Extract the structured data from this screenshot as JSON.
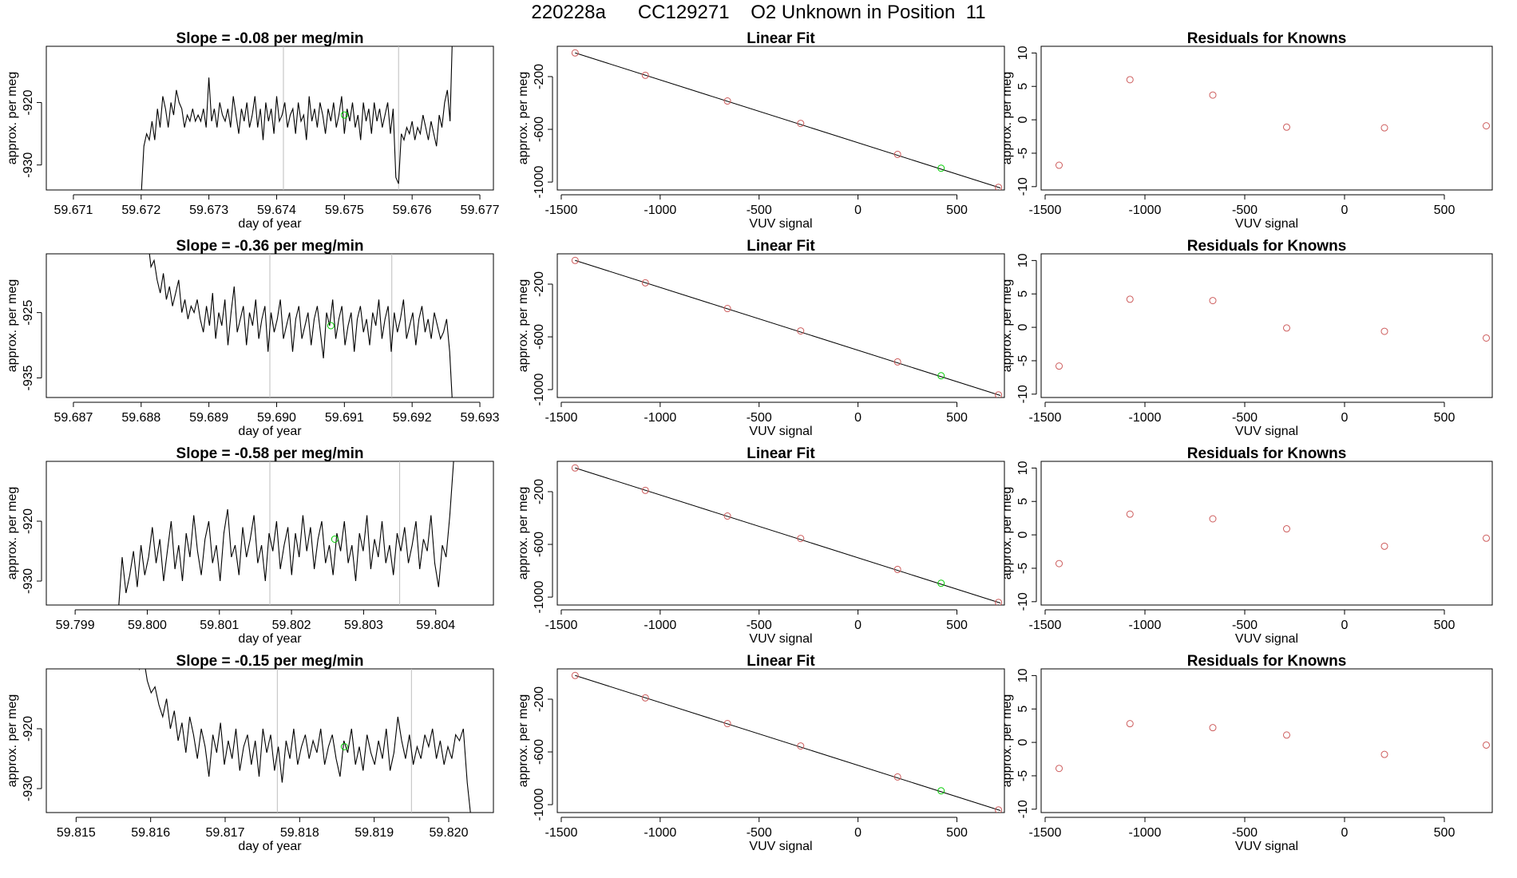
{
  "page_title": "220228a      CC129271    O2 Unknown in Position  11",
  "colors": {
    "trace": "#000000",
    "fit_line": "#000000",
    "known_points": "#cd5c5c",
    "unknown_point": "#00cc00",
    "window_lines": "#bebebe"
  },
  "chart_data": [
    {
      "type": "line",
      "title": "Slope =  -0.08  per meg/min",
      "xlabel": "day of year",
      "ylabel": "approx. per meg",
      "xlim": [
        59.6706,
        59.6772
      ],
      "ylim": [
        -934,
        -911
      ],
      "x_ticks": [
        59.671,
        59.672,
        59.673,
        59.674,
        59.675,
        59.676,
        59.677
      ],
      "x_tick_labels": [
        "59.671",
        "59.672",
        "59.673",
        "59.674",
        "59.675",
        "59.676",
        "59.677"
      ],
      "y_ticks": [
        -920,
        -930
      ],
      "y_tick_labels": [
        "-920",
        "-930"
      ],
      "vlines": [
        59.6741,
        59.6758
      ],
      "trace": {
        "x0": 59.672,
        "x1": 59.6766,
        "y": [
          -935,
          -927,
          -925,
          -926,
          -923,
          -926,
          -921,
          -924,
          -919,
          -921,
          -924,
          -920,
          -922,
          -918,
          -920,
          -921,
          -924,
          -922,
          -923,
          -921,
          -923,
          -922,
          -923,
          -921,
          -924,
          -916,
          -923,
          -921,
          -924,
          -920,
          -922,
          -923,
          -921,
          -924,
          -919,
          -922,
          -925,
          -921,
          -923,
          -920,
          -924,
          -922,
          -919,
          -924,
          -921,
          -926,
          -920,
          -923,
          -921,
          -925,
          -919,
          -923,
          -922,
          -920,
          -924,
          -922,
          -921,
          -925,
          -920,
          -923,
          -922,
          -926,
          -919,
          -923,
          -921,
          -924,
          -920,
          -922,
          -925,
          -921,
          -923,
          -920,
          -924,
          -922,
          -919,
          -925,
          -921,
          -923,
          -920,
          -924,
          -922,
          -926,
          -920,
          -923,
          -921,
          -925,
          -920,
          -923,
          -921,
          -924,
          -922,
          -920,
          -925,
          -921,
          -932,
          -933,
          -925,
          -926,
          -924,
          -925,
          -923,
          -926,
          -924,
          -925,
          -922,
          -924,
          -926,
          -923,
          -925,
          -927,
          -922,
          -924,
          -920,
          -918,
          -923,
          -907
        ]
      },
      "unknown_point": {
        "x": 59.675,
        "y": -922
      }
    },
    {
      "type": "scatter",
      "title": "Linear Fit",
      "xlabel": "VUV signal",
      "ylabel": "approx. per meg",
      "xlim": [
        -1520,
        740
      ],
      "ylim": [
        -1060,
        30
      ],
      "x_ticks": [
        -1500,
        -1000,
        -500,
        0,
        500
      ],
      "x_tick_labels": [
        "-1500",
        "-1000",
        "-500",
        "0",
        "500"
      ],
      "y_ticks": [
        -200,
        -600,
        -1000
      ],
      "y_tick_labels": [
        "-200",
        "-600",
        "-1000"
      ],
      "fit_line": {
        "x": [
          -1430,
          720
        ],
        "y": [
          -20,
          -1045
        ]
      },
      "known_points": {
        "x": [
          -1430,
          -1075,
          -660,
          -290,
          200,
          710
        ],
        "y": [
          -20,
          -190,
          -385,
          -555,
          -790,
          -1040
        ]
      },
      "unknown_point": {
        "x": 420,
        "y": -895
      }
    },
    {
      "type": "scatter",
      "title": "Residuals for Knowns",
      "xlabel": "VUV signal",
      "ylabel": "approx. per meg",
      "xlim": [
        -1520,
        740
      ],
      "ylim": [
        -10.5,
        11
      ],
      "x_ticks": [
        -1500,
        -1000,
        -500,
        0,
        500
      ],
      "x_tick_labels": [
        "-1500",
        "-1000",
        "-500",
        "0",
        "500"
      ],
      "y_ticks": [
        10,
        5,
        0,
        -5,
        -10
      ],
      "y_tick_labels": [
        "10",
        "5",
        "0",
        "-5",
        "-10"
      ],
      "known_points": {
        "x": [
          -1430,
          -1075,
          -660,
          -290,
          200,
          710
        ],
        "y": [
          -6.8,
          6.0,
          3.7,
          -1.1,
          -1.2,
          -0.9
        ]
      }
    },
    {
      "type": "line",
      "title": "Slope =  -0.36  per meg/min",
      "xlabel": "day of year",
      "ylabel": "approx. per meg",
      "xlim": [
        59.6866,
        59.6932
      ],
      "ylim": [
        -938,
        -916
      ],
      "x_ticks": [
        59.687,
        59.688,
        59.689,
        59.69,
        59.691,
        59.692,
        59.693
      ],
      "x_tick_labels": [
        "59.687",
        "59.688",
        "59.689",
        "59.690",
        "59.691",
        "59.692",
        "59.693"
      ],
      "y_ticks": [
        -925,
        -935
      ],
      "y_tick_labels": [
        "-925",
        "-935"
      ],
      "vlines": [
        59.6899,
        59.6917
      ],
      "trace": {
        "x0": 59.6881,
        "x1": 59.6926,
        "y": [
          -914,
          -918,
          -917,
          -920,
          -922,
          -919,
          -923,
          -921,
          -924,
          -922,
          -920,
          -925,
          -923,
          -926,
          -924,
          -925,
          -923,
          -926,
          -928,
          -924,
          -927,
          -922,
          -929,
          -925,
          -927,
          -923,
          -930,
          -925,
          -921,
          -928,
          -926,
          -924,
          -930,
          -925,
          -927,
          -923,
          -929,
          -926,
          -924,
          -931,
          -925,
          -928,
          -926,
          -923,
          -929,
          -927,
          -925,
          -931,
          -926,
          -924,
          -929,
          -927,
          -925,
          -930,
          -926,
          -924,
          -928,
          -932,
          -925,
          -927,
          -923,
          -929,
          -926,
          -924,
          -930,
          -927,
          -925,
          -931,
          -926,
          -924,
          -928,
          -926,
          -930,
          -925,
          -927,
          -923,
          -929,
          -926,
          -924,
          -931,
          -925,
          -928,
          -926,
          -923,
          -929,
          -927,
          -925,
          -930,
          -926,
          -924,
          -928,
          -926,
          -929,
          -925,
          -927,
          -929,
          -928,
          -926,
          -931,
          -940
        ]
      },
      "unknown_point": {
        "x": 59.6908,
        "y": -927
      }
    },
    {
      "type": "scatter",
      "title": "Linear Fit",
      "xlabel": "VUV signal",
      "ylabel": "approx. per meg",
      "xlim": [
        -1520,
        740
      ],
      "ylim": [
        -1060,
        30
      ],
      "x_ticks": [
        -1500,
        -1000,
        -500,
        0,
        500
      ],
      "x_tick_labels": [
        "-1500",
        "-1000",
        "-500",
        "0",
        "500"
      ],
      "y_ticks": [
        -200,
        -600,
        -1000
      ],
      "y_tick_labels": [
        "-200",
        "-600",
        "-1000"
      ],
      "fit_line": {
        "x": [
          -1430,
          720
        ],
        "y": [
          -20,
          -1045
        ]
      },
      "known_points": {
        "x": [
          -1430,
          -1075,
          -660,
          -290,
          200,
          710
        ],
        "y": [
          -20,
          -190,
          -385,
          -555,
          -790,
          -1040
        ]
      },
      "unknown_point": {
        "x": 420,
        "y": -895
      }
    },
    {
      "type": "scatter",
      "title": "Residuals for Knowns",
      "xlabel": "VUV signal",
      "ylabel": "approx. per meg",
      "xlim": [
        -1520,
        740
      ],
      "ylim": [
        -10.5,
        11
      ],
      "x_ticks": [
        -1500,
        -1000,
        -500,
        0,
        500
      ],
      "x_tick_labels": [
        "-1500",
        "-1000",
        "-500",
        "0",
        "500"
      ],
      "y_ticks": [
        10,
        5,
        0,
        -5,
        -10
      ],
      "y_tick_labels": [
        "10",
        "5",
        "0",
        "-5",
        "-10"
      ],
      "known_points": {
        "x": [
          -1430,
          -1075,
          -660,
          -290,
          200,
          710
        ],
        "y": [
          -5.8,
          4.2,
          4.0,
          -0.1,
          -0.6,
          -1.6
        ]
      }
    },
    {
      "type": "line",
      "title": "Slope =  -0.58  per meg/min",
      "xlabel": "day of year",
      "ylabel": "approx. per meg",
      "xlim": [
        59.7986,
        59.8048
      ],
      "ylim": [
        -934,
        -910
      ],
      "x_ticks": [
        59.799,
        59.8,
        59.801,
        59.802,
        59.803,
        59.804
      ],
      "x_tick_labels": [
        "59.799",
        "59.800",
        "59.801",
        "59.802",
        "59.803",
        "59.804"
      ],
      "y_ticks": [
        -920,
        -930
      ],
      "y_tick_labels": [
        "-920",
        "-930"
      ],
      "vlines": [
        59.8017,
        59.8035
      ],
      "trace": {
        "x0": 59.7996,
        "x1": 59.8043,
        "y": [
          -935,
          -926,
          -932,
          -929,
          -925,
          -931,
          -924,
          -929,
          -926,
          -921,
          -927,
          -923,
          -930,
          -925,
          -920,
          -928,
          -924,
          -930,
          -922,
          -926,
          -919,
          -925,
          -929,
          -923,
          -920,
          -927,
          -924,
          -930,
          -922,
          -918,
          -926,
          -924,
          -929,
          -921,
          -926,
          -923,
          -919,
          -927,
          -924,
          -930,
          -922,
          -925,
          -920,
          -928,
          -924,
          -921,
          -929,
          -922,
          -926,
          -919,
          -925,
          -921,
          -928,
          -923,
          -920,
          -927,
          -924,
          -929,
          -922,
          -925,
          -920,
          -927,
          -924,
          -930,
          -922,
          -925,
          -919,
          -928,
          -923,
          -926,
          -920,
          -927,
          -924,
          -929,
          -922,
          -925,
          -921,
          -927,
          -924,
          -920,
          -928,
          -923,
          -925,
          -919,
          -927,
          -931,
          -924,
          -926,
          -919,
          -910,
          -905
        ]
      },
      "unknown_point": {
        "x": 59.8026,
        "y": -923
      }
    },
    {
      "type": "scatter",
      "title": "Linear Fit",
      "xlabel": "VUV signal",
      "ylabel": "approx. per meg",
      "xlim": [
        -1520,
        740
      ],
      "ylim": [
        -1060,
        30
      ],
      "x_ticks": [
        -1500,
        -1000,
        -500,
        0,
        500
      ],
      "x_tick_labels": [
        "-1500",
        "-1000",
        "-500",
        "0",
        "500"
      ],
      "y_ticks": [
        -200,
        -600,
        -1000
      ],
      "y_tick_labels": [
        "-200",
        "-600",
        "-1000"
      ],
      "fit_line": {
        "x": [
          -1430,
          720
        ],
        "y": [
          -20,
          -1045
        ]
      },
      "known_points": {
        "x": [
          -1430,
          -1075,
          -660,
          -290,
          200,
          710
        ],
        "y": [
          -20,
          -190,
          -385,
          -555,
          -790,
          -1040
        ]
      },
      "unknown_point": {
        "x": 420,
        "y": -895
      }
    },
    {
      "type": "scatter",
      "title": "Residuals for Knowns",
      "xlabel": "VUV signal",
      "ylabel": "approx. per meg",
      "xlim": [
        -1520,
        740
      ],
      "ylim": [
        -10.5,
        11
      ],
      "x_ticks": [
        -1500,
        -1000,
        -500,
        0,
        500
      ],
      "x_tick_labels": [
        "-1500",
        "-1000",
        "-500",
        "0",
        "500"
      ],
      "y_ticks": [
        10,
        5,
        0,
        -5,
        -10
      ],
      "y_tick_labels": [
        "10",
        "5",
        "0",
        "-5",
        "-10"
      ],
      "known_points": {
        "x": [
          -1430,
          -1075,
          -660,
          -290,
          200,
          710
        ],
        "y": [
          -4.3,
          3.1,
          2.4,
          0.9,
          -1.7,
          -0.5
        ]
      }
    },
    {
      "type": "line",
      "title": "Slope =  -0.15  per meg/min",
      "xlabel": "day of year",
      "ylabel": "approx. per meg",
      "xlim": [
        59.8146,
        59.8206
      ],
      "ylim": [
        -934,
        -910
      ],
      "x_ticks": [
        59.815,
        59.816,
        59.817,
        59.818,
        59.819,
        59.82
      ],
      "x_tick_labels": [
        "59.815",
        "59.816",
        "59.817",
        "59.818",
        "59.819",
        "59.820"
      ],
      "y_ticks": [
        -920,
        -930
      ],
      "y_tick_labels": [
        "-920",
        "-930"
      ],
      "vlines": [
        59.8177,
        59.8195
      ],
      "trace": {
        "x0": 59.8158,
        "x1": 59.8203,
        "y": [
          -907,
          -910,
          -908,
          -912,
          -914,
          -913,
          -916,
          -918,
          -915,
          -920,
          -917,
          -922,
          -919,
          -924,
          -918,
          -921,
          -925,
          -920,
          -923,
          -928,
          -921,
          -924,
          -919,
          -926,
          -922,
          -925,
          -920,
          -927,
          -923,
          -921,
          -926,
          -922,
          -928,
          -920,
          -924,
          -921,
          -927,
          -923,
          -929,
          -922,
          -925,
          -920,
          -926,
          -923,
          -921,
          -925,
          -922,
          -924,
          -920,
          -926,
          -923,
          -921,
          -925,
          -928,
          -922,
          -924,
          -920,
          -926,
          -923,
          -927,
          -921,
          -924,
          -926,
          -922,
          -925,
          -920,
          -927,
          -924,
          -918,
          -922,
          -925,
          -921,
          -926,
          -923,
          -925,
          -921,
          -923,
          -920,
          -925,
          -922,
          -926,
          -923,
          -925,
          -921,
          -922,
          -920,
          -929,
          -935
        ]
      },
      "unknown_point": {
        "x": 59.8186,
        "y": -923
      }
    },
    {
      "type": "scatter",
      "title": "Linear Fit",
      "xlabel": "VUV signal",
      "ylabel": "approx. per meg",
      "xlim": [
        -1520,
        740
      ],
      "ylim": [
        -1060,
        30
      ],
      "x_ticks": [
        -1500,
        -1000,
        -500,
        0,
        500
      ],
      "x_tick_labels": [
        "-1500",
        "-1000",
        "-500",
        "0",
        "500"
      ],
      "y_ticks": [
        -200,
        -600,
        -1000
      ],
      "y_tick_labels": [
        "-200",
        "-600",
        "-1000"
      ],
      "fit_line": {
        "x": [
          -1430,
          720
        ],
        "y": [
          -20,
          -1045
        ]
      },
      "known_points": {
        "x": [
          -1430,
          -1075,
          -660,
          -290,
          200,
          710
        ],
        "y": [
          -20,
          -190,
          -385,
          -555,
          -790,
          -1040
        ]
      },
      "unknown_point": {
        "x": 420,
        "y": -895
      }
    },
    {
      "type": "scatter",
      "title": "Residuals for Knowns",
      "xlabel": "VUV signal",
      "ylabel": "approx. per meg",
      "xlim": [
        -1520,
        740
      ],
      "ylim": [
        -10.5,
        11
      ],
      "x_ticks": [
        -1500,
        -1000,
        -500,
        0,
        500
      ],
      "x_tick_labels": [
        "-1500",
        "-1000",
        "-500",
        "0",
        "500"
      ],
      "y_ticks": [
        10,
        5,
        0,
        -5,
        -10
      ],
      "y_tick_labels": [
        "10",
        "5",
        "0",
        "-5",
        "-10"
      ],
      "known_points": {
        "x": [
          -1430,
          -1075,
          -660,
          -290,
          200,
          710
        ],
        "y": [
          -3.9,
          2.8,
          2.2,
          1.1,
          -1.8,
          -0.4
        ]
      }
    }
  ]
}
